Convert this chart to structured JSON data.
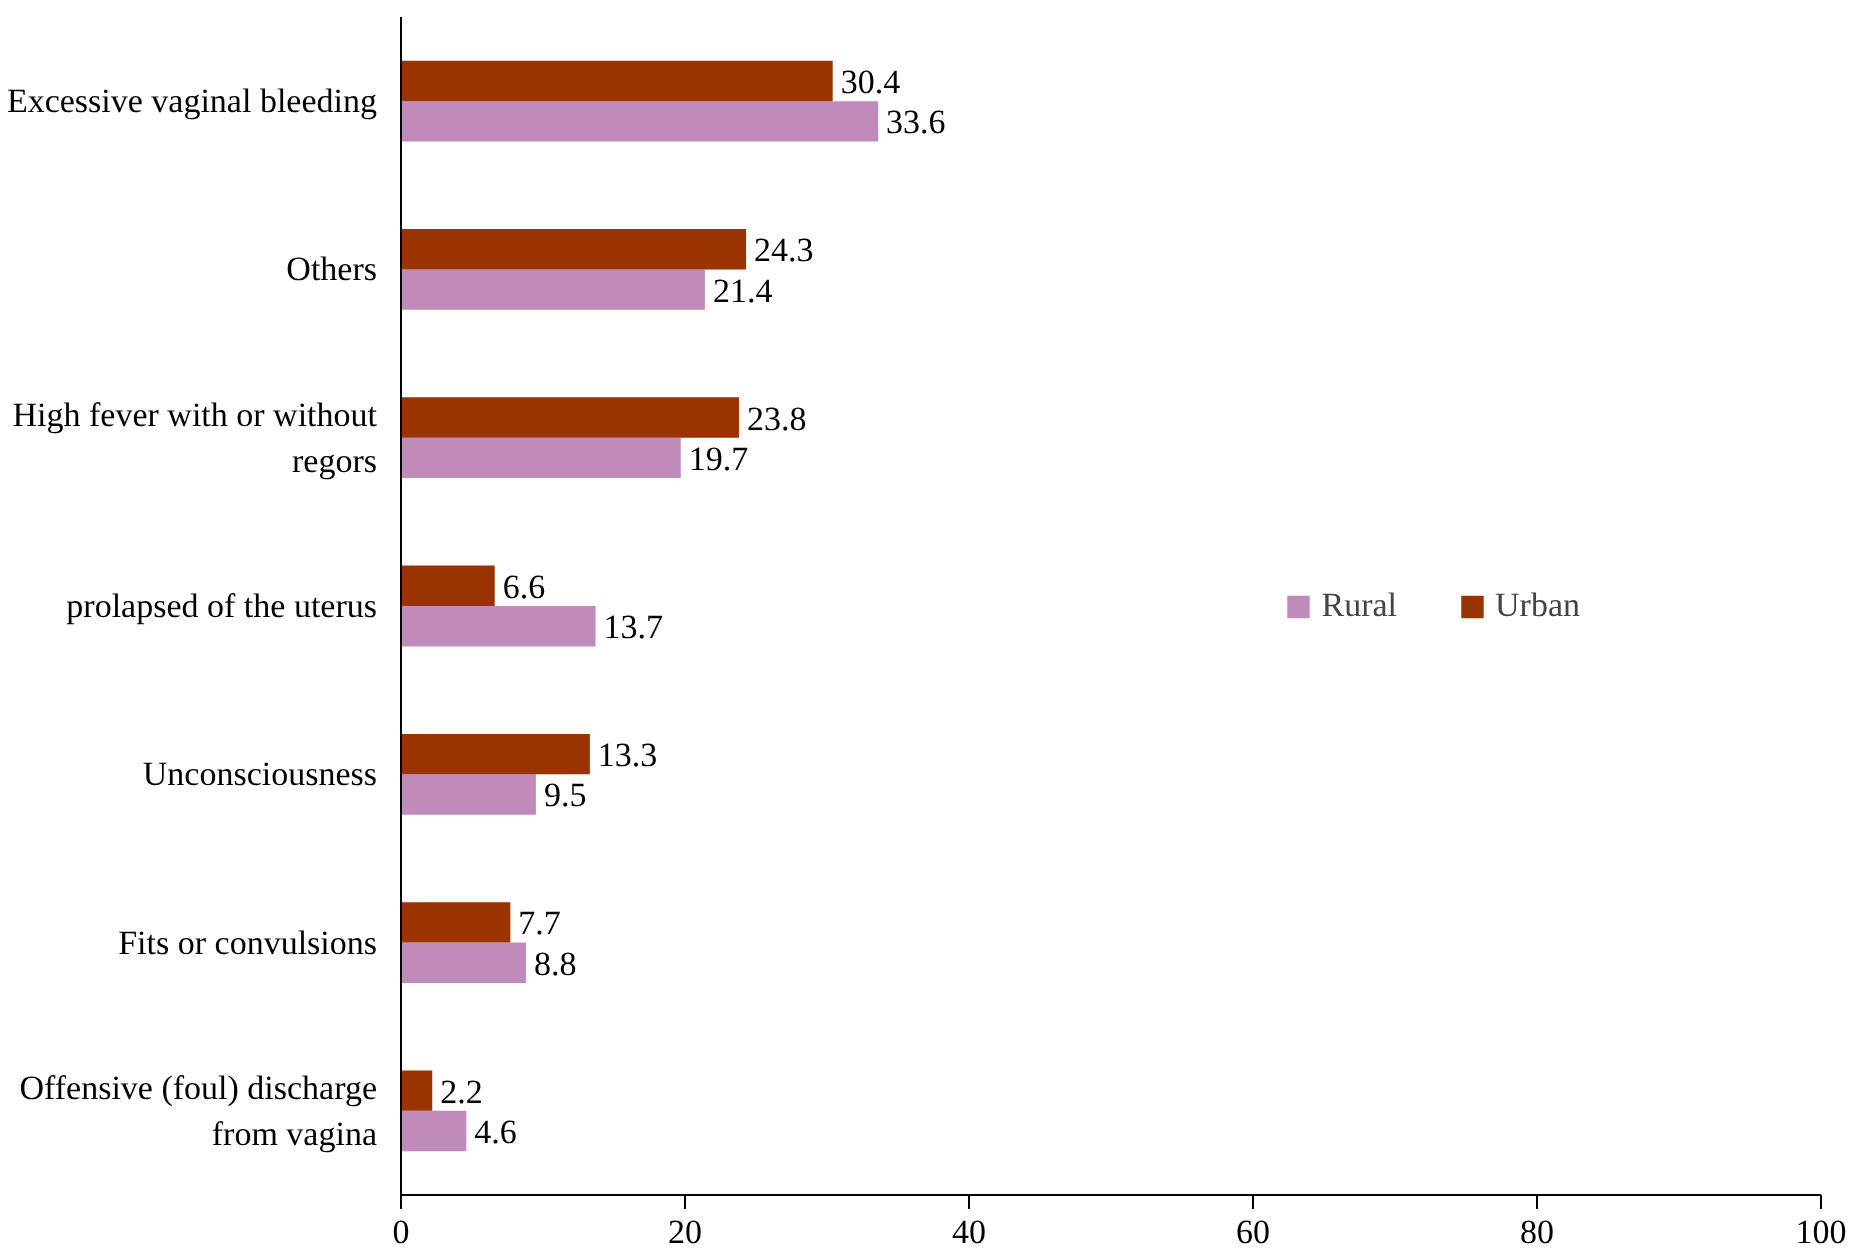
{
  "chart_data": {
    "type": "bar",
    "orientation": "horizontal",
    "categories": [
      "Excessive vaginal bleeding",
      "Others",
      "High fever with or without regors",
      "prolapsed of the uterus",
      "Unconsciousness",
      "Fits or convulsions",
      "Offensive (foul) discharge from vagina"
    ],
    "series": [
      {
        "name": "Rural",
        "color": "#c08bbb",
        "values": [
          33.6,
          21.4,
          19.7,
          13.7,
          9.5,
          8.8,
          4.6
        ]
      },
      {
        "name": "Urban",
        "color": "#993300",
        "values": [
          30.4,
          24.3,
          23.8,
          6.6,
          13.3,
          7.7,
          2.2
        ]
      }
    ],
    "xlim": [
      0,
      100
    ],
    "xticks": [
      0,
      20,
      40,
      60,
      80,
      100
    ],
    "data_labels": true,
    "grid": false,
    "legend": "right"
  }
}
